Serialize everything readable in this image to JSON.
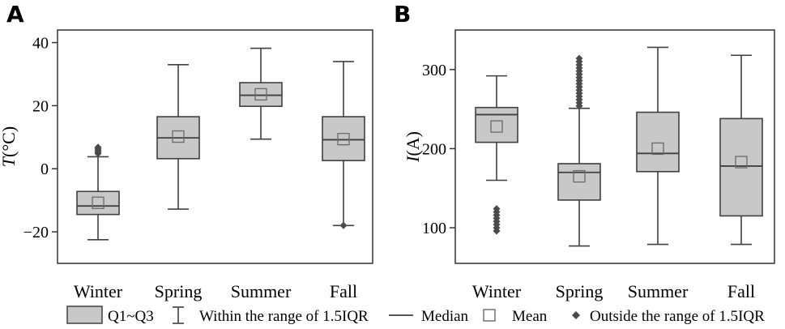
{
  "chart_data": [
    {
      "type": "box",
      "panel": "A",
      "ylabel_italic": "T",
      "ylabel_unit": "(°C)",
      "ylim": [
        -30,
        44
      ],
      "yticks": [
        -20,
        0,
        20,
        40
      ],
      "ytick_labels": [
        "−20",
        "0",
        "20",
        "40"
      ],
      "categories": [
        "Winter",
        "Spring",
        "Summer",
        "Fall"
      ],
      "boxes": [
        {
          "whisker_low": -22.5,
          "q1": -14.5,
          "median": -11.8,
          "q3": -7.2,
          "whisker_high": 3.8,
          "mean": -10.8,
          "outliers": [
            4.8,
            5.3,
            5.8,
            6.3,
            6.8
          ]
        },
        {
          "whisker_low": -12.8,
          "q1": 3.2,
          "median": 9.8,
          "q3": 16.5,
          "whisker_high": 33.0,
          "mean": 10.2,
          "outliers": []
        },
        {
          "whisker_low": 9.4,
          "q1": 19.8,
          "median": 23.3,
          "q3": 27.3,
          "whisker_high": 38.2,
          "mean": 23.6,
          "outliers": []
        },
        {
          "whisker_low": -18.0,
          "q1": 2.6,
          "median": 9.2,
          "q3": 16.5,
          "whisker_high": 34.0,
          "mean": 9.4,
          "outliers": [
            -18.0
          ]
        }
      ],
      "grid": false
    },
    {
      "type": "box",
      "panel": "B",
      "ylabel_italic": "I",
      "ylabel_unit": "(A)",
      "ylim": [
        55,
        350
      ],
      "yticks": [
        100,
        200,
        300
      ],
      "ytick_labels": [
        "100",
        "200",
        "300"
      ],
      "categories": [
        "Winter",
        "Spring",
        "Summer",
        "Fall"
      ],
      "boxes": [
        {
          "whisker_low": 160,
          "q1": 208,
          "median": 243,
          "q3": 252,
          "whisker_high": 292,
          "mean": 228,
          "outliers": [
            96,
            100,
            104,
            108,
            112,
            116,
            120,
            124
          ]
        },
        {
          "whisker_low": 77,
          "q1": 135,
          "median": 170,
          "q3": 181,
          "whisker_high": 251,
          "mean": 165,
          "outliers": [
            254,
            258,
            262,
            266,
            270,
            274,
            278,
            282,
            286,
            290,
            294,
            298,
            302,
            306,
            310,
            314
          ]
        },
        {
          "whisker_low": 79,
          "q1": 171,
          "median": 194,
          "q3": 246,
          "whisker_high": 328,
          "mean": 200,
          "outliers": []
        },
        {
          "whisker_low": 79,
          "q1": 115,
          "median": 178,
          "q3": 238,
          "whisker_high": 318,
          "mean": 183,
          "outliers": []
        }
      ],
      "grid": false
    }
  ],
  "legend": {
    "items": [
      {
        "label": "Q1~Q3",
        "symbol": "box"
      },
      {
        "label": "Within the range of 1.5IQR",
        "symbol": "whisker"
      },
      {
        "label": "Median",
        "symbol": "line"
      },
      {
        "label": "Mean",
        "symbol": "square"
      },
      {
        "label": "Outside the range of 1.5IQR",
        "symbol": "diamond"
      }
    ]
  },
  "colors": {
    "box_fill": "#c8c8c8",
    "stroke": "#404040",
    "mean_stroke": "#6a6a6a",
    "outlier": "#4a4a4a"
  }
}
